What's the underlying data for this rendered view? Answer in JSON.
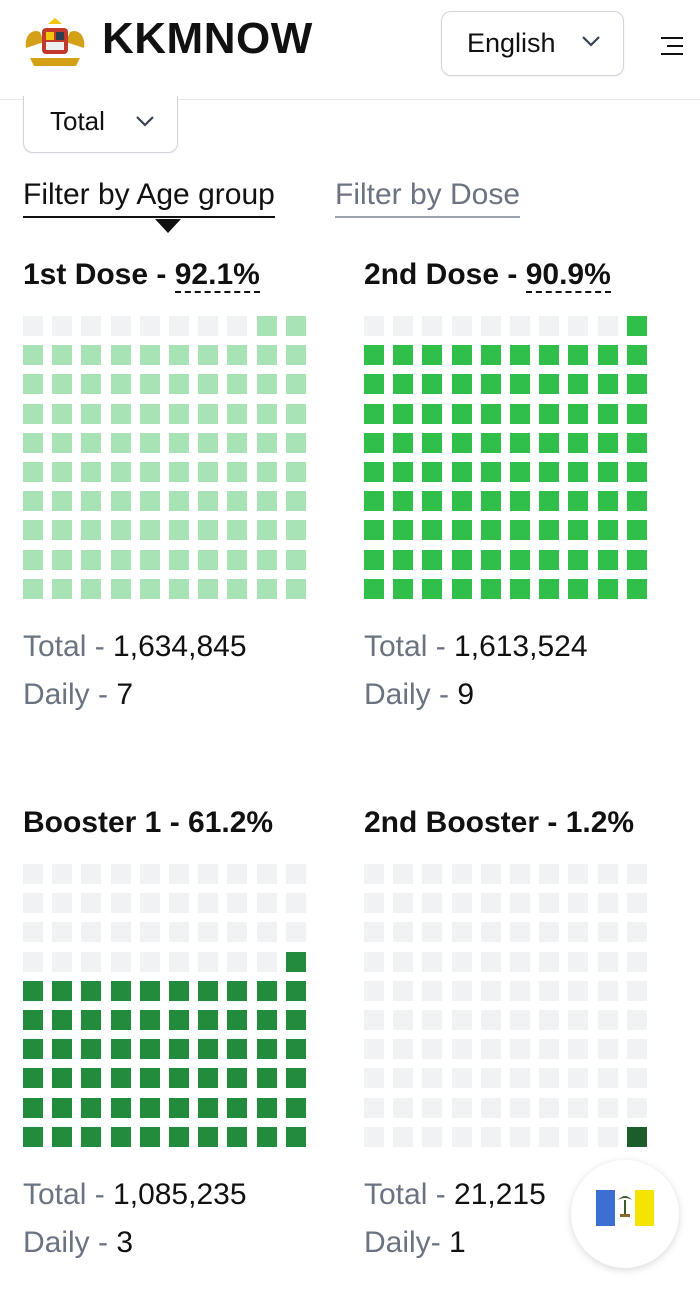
{
  "header": {
    "brand": "KKMNOW",
    "language": {
      "selected": "English"
    }
  },
  "filters": {
    "scope_selected": "Total",
    "tabs": [
      {
        "label": "Filter by Age group",
        "active": true
      },
      {
        "label": "Filter by Dose",
        "active": false
      }
    ]
  },
  "panels": [
    {
      "title": "1st Dose",
      "percent": "92.1%",
      "percent_value": 92.1,
      "fill_color": "#a7e3b5",
      "total_label": "Total",
      "total_value": "1,634,845",
      "daily_label": "Daily",
      "daily_value": "7"
    },
    {
      "title": "2nd Dose",
      "percent": "90.9%",
      "percent_value": 90.9,
      "fill_color": "#2fbf4a",
      "total_label": "Total",
      "total_value": "1,613,524",
      "daily_label": "Daily",
      "daily_value": "9"
    },
    {
      "title": "Booster 1",
      "percent": "61.2%",
      "percent_value": 61.2,
      "fill_color": "#228b3c",
      "total_label": "Total",
      "total_value": "1,085,235",
      "daily_label": "Daily",
      "daily_value": "3"
    },
    {
      "title": "2nd Booster",
      "percent": "1.2%",
      "percent_value": 1.2,
      "fill_color": "#1b5e2c",
      "total_label": "Total",
      "total_value": "21,215",
      "daily_label": "Daily",
      "daily_value": "1"
    }
  ],
  "icons": {
    "logo": "malaysia-coat-of-arms-icon",
    "language_chevron": "chevron-down-icon",
    "menu": "menu-icon",
    "state_flag": "penang-flag-icon"
  },
  "colors": {
    "empty_cell": "#f1f2f4",
    "accent_text": "#111111",
    "muted_text": "#6b7280"
  }
}
